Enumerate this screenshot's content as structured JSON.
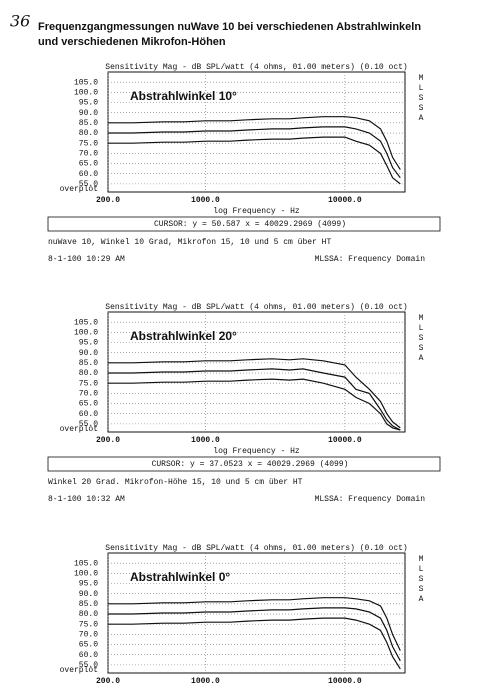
{
  "page_number": "36",
  "header": {
    "title_lines": [
      "Frequenzgangmessungen nuWave 10 bei verschiedenen Abstrahlwinkeln",
      "und verschiedenen Mikrofon-Höhen"
    ]
  },
  "chart_data": [
    {
      "type": "line",
      "title": "Sensitivity Mag - dB SPL/watt (4 ohms, 01.00 meters) (0.10 oct)",
      "annotation": "Abstrahlwinkel 10°",
      "side_label": "MLSSA",
      "bottom_label": "overplot",
      "x_label": "log Frequency - Hz",
      "cursor": "CURSOR: y = 50.587 x = 40029.2969 (4099)",
      "caption": "nuWave 10, Winkel 10 Grad, Mikrofon 15, 10 und 5 cm über HT",
      "date": "8-1-100 10:29 AM",
      "footer_right": "MLSSA: Frequency Domain",
      "log_x": true,
      "grid": true,
      "xlim": [
        200,
        27000
      ],
      "ylim": [
        51,
        110
      ],
      "xticks": [
        {
          "value": 200,
          "label": "200.0"
        },
        {
          "value": 1000,
          "label": "1000.0"
        },
        {
          "value": 10000,
          "label": "10000.0"
        }
      ],
      "yticks": [
        {
          "value": 105,
          "label": "105.0"
        },
        {
          "value": 100,
          "label": "100.0"
        },
        {
          "value": 95,
          "label": "95.0"
        },
        {
          "value": 90,
          "label": "90.0"
        },
        {
          "value": 85,
          "label": "85.0"
        },
        {
          "value": 80,
          "label": "80.0"
        },
        {
          "value": 75,
          "label": "75.0"
        },
        {
          "value": 70,
          "label": "70.0"
        },
        {
          "value": 65,
          "label": "65.0"
        },
        {
          "value": 60,
          "label": "60.0"
        },
        {
          "value": 55,
          "label": "55.0"
        }
      ],
      "x": [
        200,
        300,
        500,
        700,
        1000,
        1500,
        2000,
        3000,
        4000,
        5000,
        7000,
        10000,
        12000,
        15000,
        18000,
        20000,
        22000,
        25000
      ],
      "series": [
        {
          "color": "#111111",
          "values": [
            85,
            85,
            85.5,
            85.5,
            86,
            86,
            86.5,
            87,
            87,
            87.5,
            88,
            88,
            87.5,
            86,
            82,
            76,
            68,
            62
          ]
        },
        {
          "color": "#111111",
          "values": [
            80,
            80,
            80.5,
            80.5,
            81,
            81,
            81.5,
            82,
            82,
            82.5,
            83,
            83,
            82,
            80,
            76,
            70,
            63,
            58
          ]
        },
        {
          "color": "#111111",
          "values": [
            75,
            75,
            75.5,
            75.5,
            76,
            76,
            76.5,
            77,
            77,
            77.5,
            78,
            78,
            76,
            74,
            70,
            64,
            58,
            55
          ]
        }
      ]
    },
    {
      "type": "line",
      "title": "Sensitivity Mag - dB SPL/watt (4 ohms, 01.00 meters) (0.10 oct)",
      "annotation": "Abstrahlwinkel 20°",
      "side_label": "MLSSA",
      "bottom_label": "overplot",
      "x_label": "log Frequency - Hz",
      "cursor": "CURSOR: y = 37.0523 x = 40029.2969 (4099)",
      "caption": "Winkel 20 Grad. Mikrofon-Höhe 15, 10 und 5 cm über HT",
      "date": "8-1-100 10:32 AM",
      "footer_right": "MLSSA: Frequency Domain",
      "log_x": true,
      "grid": true,
      "xlim": [
        200,
        27000
      ],
      "ylim": [
        51,
        110
      ],
      "xticks": [
        {
          "value": 200,
          "label": "200.0"
        },
        {
          "value": 1000,
          "label": "1000.0"
        },
        {
          "value": 10000,
          "label": "10000.0"
        }
      ],
      "yticks": [
        {
          "value": 105,
          "label": "105.0"
        },
        {
          "value": 100,
          "label": "100.0"
        },
        {
          "value": 95,
          "label": "95.0"
        },
        {
          "value": 90,
          "label": "90.0"
        },
        {
          "value": 85,
          "label": "85.0"
        },
        {
          "value": 80,
          "label": "80.0"
        },
        {
          "value": 75,
          "label": "75.0"
        },
        {
          "value": 70,
          "label": "70.0"
        },
        {
          "value": 65,
          "label": "65.0"
        },
        {
          "value": 60,
          "label": "60.0"
        },
        {
          "value": 55,
          "label": "55.0"
        }
      ],
      "x": [
        200,
        300,
        500,
        700,
        1000,
        1500,
        2000,
        3000,
        4000,
        5000,
        7000,
        10000,
        12000,
        15000,
        18000,
        20000,
        22000,
        25000
      ],
      "series": [
        {
          "color": "#111111",
          "values": [
            85,
            85,
            85.5,
            85.5,
            86,
            86,
            86.5,
            87,
            86.5,
            87,
            86,
            84,
            78,
            72,
            66,
            60,
            56,
            53
          ]
        },
        {
          "color": "#111111",
          "values": [
            80,
            80,
            80.5,
            80.5,
            81,
            81,
            81.5,
            82,
            81.5,
            82,
            80,
            78,
            72,
            70,
            62,
            57,
            54,
            52
          ]
        },
        {
          "color": "#111111",
          "values": [
            75,
            75,
            75.5,
            75.5,
            76,
            76,
            76.5,
            77,
            76.5,
            77,
            75,
            72,
            68,
            65,
            60,
            55,
            53,
            52
          ]
        }
      ]
    },
    {
      "type": "line",
      "title": "Sensitivity Mag - dB SPL/watt (4 ohms, 01.00 meters) (0.10 oct)",
      "annotation": "Abstrahlwinkel 0°",
      "side_label": "MLSSA",
      "bottom_label": "overplot",
      "log_x": true,
      "grid": true,
      "xlim": [
        200,
        27000
      ],
      "ylim": [
        51,
        110
      ],
      "xticks": [
        {
          "value": 200,
          "label": "200.0"
        },
        {
          "value": 1000,
          "label": "1000.0"
        },
        {
          "value": 10000,
          "label": "10000.0"
        }
      ],
      "yticks": [
        {
          "value": 105,
          "label": "105.0"
        },
        {
          "value": 100,
          "label": "100.0"
        },
        {
          "value": 95,
          "label": "95.0"
        },
        {
          "value": 90,
          "label": "90.0"
        },
        {
          "value": 85,
          "label": "85.0"
        },
        {
          "value": 80,
          "label": "80.0"
        },
        {
          "value": 75,
          "label": "75.0"
        },
        {
          "value": 70,
          "label": "70.0"
        },
        {
          "value": 65,
          "label": "65.0"
        },
        {
          "value": 60,
          "label": "60.0"
        },
        {
          "value": 55,
          "label": "55.0"
        }
      ],
      "x": [
        200,
        300,
        500,
        700,
        1000,
        1500,
        2000,
        3000,
        4000,
        5000,
        7000,
        10000,
        12000,
        15000,
        18000,
        20000,
        22000,
        25000
      ],
      "series": [
        {
          "color": "#111111",
          "values": [
            85,
            85,
            85.5,
            85.5,
            86,
            86,
            86.5,
            87,
            87,
            87.5,
            88,
            88,
            87.5,
            86.5,
            84,
            78,
            70,
            62
          ]
        },
        {
          "color": "#111111",
          "values": [
            80,
            80,
            80.5,
            80.5,
            81,
            81,
            81.5,
            82,
            82,
            82.5,
            83,
            83,
            82.5,
            81,
            78,
            72,
            64,
            57
          ]
        },
        {
          "color": "#111111",
          "values": [
            75,
            75,
            75.5,
            75.5,
            76,
            76,
            76.5,
            77,
            77,
            77.5,
            78,
            78,
            77,
            75,
            72,
            66,
            59,
            53
          ]
        }
      ]
    }
  ]
}
